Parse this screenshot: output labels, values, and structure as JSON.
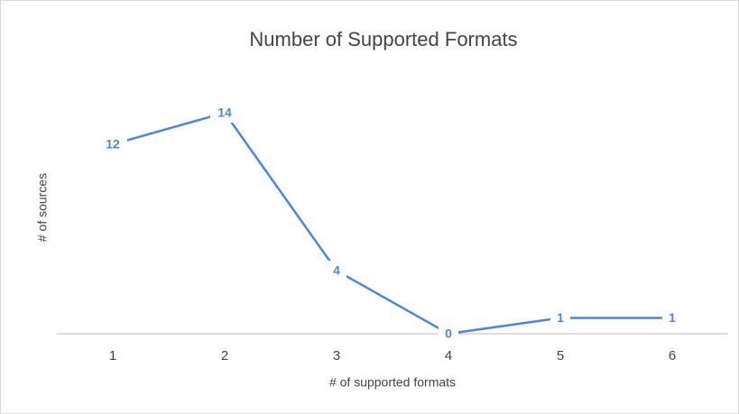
{
  "chart_data": {
    "type": "line",
    "title": "Number of Supported Formats",
    "x_label": "# of supported formats",
    "y_label": "# of sources",
    "categories": [
      "1",
      "2",
      "3",
      "4",
      "5",
      "6"
    ],
    "series": [
      {
        "name": "# of sources",
        "color": "#4a86e8",
        "values": [
          12,
          14,
          4,
          0,
          1,
          1
        ]
      }
    ],
    "ylim": [
      0,
      16
    ]
  }
}
